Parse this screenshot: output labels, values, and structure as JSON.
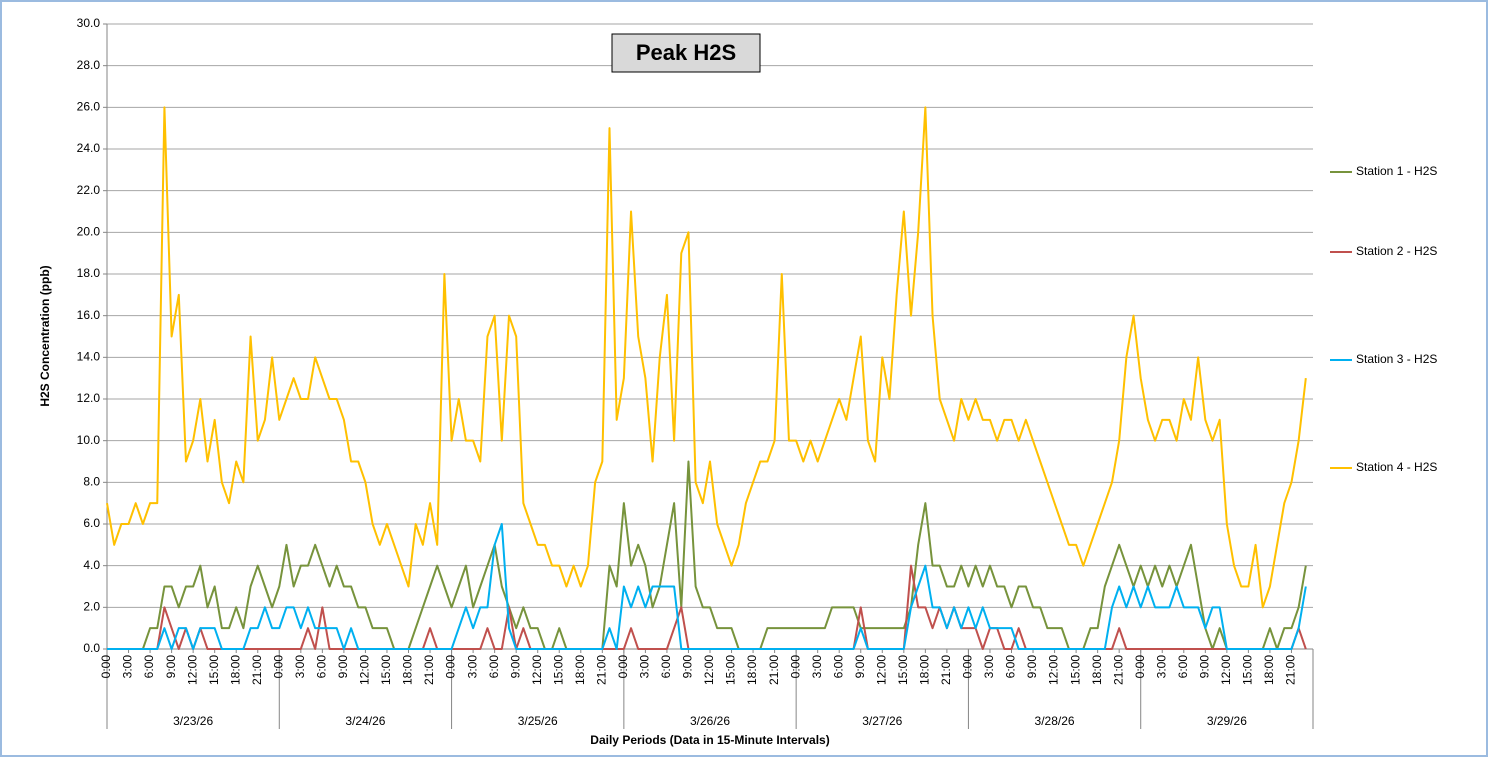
{
  "chart_data": {
    "type": "line",
    "title": "Peak H2S",
    "x_label": "Daily Periods (Data in 15-Minute Intervals)",
    "y_label": "H2S Concentration (ppb)",
    "days": [
      "3/23/26",
      "3/24/26",
      "3/25/26",
      "3/26/26",
      "3/27/26",
      "3/28/26",
      "3/29/26"
    ],
    "categories": [
      "0:00",
      null,
      null,
      "3:00",
      null,
      null,
      "6:00",
      null,
      null,
      "9:00",
      null,
      null,
      "12:00",
      null,
      null,
      "15:00",
      null,
      null,
      "18:00",
      null,
      null,
      "21:00",
      null,
      null,
      "0:00",
      null,
      null,
      "3:00",
      null,
      null,
      "6:00",
      null,
      null,
      "9:00",
      null,
      null,
      "12:00",
      null,
      null,
      "15:00",
      null,
      null,
      "18:00",
      null,
      null,
      "21:00",
      null,
      null,
      "0:00",
      null,
      null,
      "3:00",
      null,
      null,
      "6:00",
      null,
      null,
      "9:00",
      null,
      null,
      "12:00",
      null,
      null,
      "15:00",
      null,
      null,
      "18:00",
      null,
      null,
      "21:00",
      null,
      null,
      "0:00",
      null,
      null,
      "3:00",
      null,
      null,
      "6:00",
      null,
      null,
      "9:00",
      null,
      null,
      "12:00",
      null,
      null,
      "15:00",
      null,
      null,
      "18:00",
      null,
      null,
      "21:00",
      null,
      null,
      "0:00",
      null,
      null,
      "3:00",
      null,
      null,
      "6:00",
      null,
      null,
      "9:00",
      null,
      null,
      "12:00",
      null,
      null,
      "15:00",
      null,
      null,
      "18:00",
      null,
      null,
      "21:00",
      null,
      null,
      "0:00",
      null,
      null,
      "3:00",
      null,
      null,
      "6:00",
      null,
      null,
      "9:00",
      null,
      null,
      "12:00",
      null,
      null,
      "15:00",
      null,
      null,
      "18:00",
      null,
      null,
      "21:00",
      null,
      null,
      "0:00",
      null,
      null,
      "3:00",
      null,
      null,
      "6:00",
      null,
      null,
      "9:00",
      null,
      null,
      "12:00",
      null,
      null,
      "15:00",
      null,
      null,
      "18:00",
      null,
      null,
      "21:00",
      null,
      null
    ],
    "series": [
      {
        "name": "Station 1 - H2S",
        "color": "#77933c",
        "values": [
          0,
          0,
          0,
          0,
          0,
          0,
          1,
          1,
          3,
          3,
          2,
          3,
          3,
          4,
          2,
          3,
          1,
          1,
          2,
          1,
          3,
          4,
          3,
          2,
          3,
          5,
          3,
          4,
          4,
          5,
          4,
          3,
          4,
          3,
          3,
          2,
          2,
          1,
          1,
          1,
          0,
          0,
          0,
          1,
          2,
          3,
          4,
          3,
          2,
          3,
          4,
          2,
          3,
          4,
          5,
          3,
          2,
          1,
          2,
          1,
          1,
          0,
          0,
          1,
          0,
          0,
          0,
          0,
          0,
          0,
          4,
          3,
          7,
          4,
          5,
          4,
          2,
          3,
          5,
          7,
          2,
          9,
          3,
          2,
          2,
          1,
          1,
          1,
          0,
          0,
          0,
          0,
          1,
          1,
          1,
          1,
          1,
          1,
          1,
          1,
          1,
          2,
          2,
          2,
          2,
          1,
          1,
          1,
          1,
          1,
          1,
          1,
          2,
          5,
          7,
          4,
          4,
          3,
          3,
          4,
          3,
          4,
          3,
          4,
          3,
          3,
          2,
          3,
          3,
          2,
          2,
          1,
          1,
          1,
          0,
          0,
          0,
          1,
          1,
          3,
          4,
          5,
          4,
          3,
          4,
          3,
          4,
          3,
          4,
          3,
          4,
          5,
          3,
          1,
          0,
          1,
          0,
          0,
          0,
          0,
          0,
          0,
          1,
          0,
          1,
          1,
          2,
          4
        ]
      },
      {
        "name": "Station 2 - H2S",
        "color": "#c0504d",
        "values": [
          0,
          0,
          0,
          0,
          0,
          0,
          0,
          0,
          2,
          1,
          0,
          1,
          0,
          1,
          0,
          0,
          0,
          0,
          0,
          0,
          0,
          0,
          0,
          0,
          0,
          0,
          0,
          0,
          1,
          0,
          2,
          0,
          0,
          0,
          0,
          0,
          0,
          0,
          0,
          0,
          0,
          0,
          0,
          0,
          0,
          1,
          0,
          0,
          0,
          0,
          0,
          0,
          0,
          1,
          0,
          0,
          2,
          0,
          1,
          0,
          0,
          0,
          0,
          0,
          0,
          0,
          0,
          0,
          0,
          0,
          0,
          0,
          0,
          1,
          0,
          0,
          0,
          0,
          0,
          1,
          2,
          0,
          0,
          0,
          0,
          0,
          0,
          0,
          0,
          0,
          0,
          0,
          0,
          0,
          0,
          0,
          0,
          0,
          0,
          0,
          0,
          0,
          0,
          0,
          0,
          2,
          0,
          0,
          0,
          0,
          0,
          0,
          4,
          2,
          2,
          1,
          2,
          1,
          2,
          1,
          1,
          1,
          0,
          1,
          1,
          0,
          0,
          1,
          0,
          0,
          0,
          0,
          0,
          0,
          0,
          0,
          0,
          0,
          0,
          0,
          0,
          1,
          0,
          0,
          0,
          0,
          0,
          0,
          0,
          0,
          0,
          0,
          0,
          0,
          0,
          0,
          0,
          0,
          0,
          0,
          0,
          0,
          0,
          0,
          0,
          0,
          1,
          0
        ]
      },
      {
        "name": "Station 3 - H2S",
        "color": "#00b0f0",
        "values": [
          0,
          0,
          0,
          0,
          0,
          0,
          0,
          0,
          1,
          0,
          1,
          1,
          0,
          1,
          1,
          1,
          0,
          0,
          0,
          0,
          1,
          1,
          2,
          1,
          1,
          2,
          2,
          1,
          2,
          1,
          1,
          1,
          1,
          0,
          1,
          0,
          0,
          0,
          0,
          0,
          0,
          0,
          0,
          0,
          0,
          0,
          0,
          0,
          0,
          1,
          2,
          1,
          2,
          2,
          5,
          6,
          1,
          0,
          0,
          0,
          0,
          0,
          0,
          0,
          0,
          0,
          0,
          0,
          0,
          0,
          1,
          0,
          3,
          2,
          3,
          2,
          3,
          3,
          3,
          3,
          0,
          0,
          0,
          0,
          0,
          0,
          0,
          0,
          0,
          0,
          0,
          0,
          0,
          0,
          0,
          0,
          0,
          0,
          0,
          0,
          0,
          0,
          0,
          0,
          0,
          1,
          0,
          0,
          0,
          0,
          0,
          0,
          2,
          3,
          4,
          2,
          2,
          1,
          2,
          1,
          2,
          1,
          2,
          1,
          1,
          1,
          1,
          0,
          0,
          0,
          0,
          0,
          0,
          0,
          0,
          0,
          0,
          0,
          0,
          0,
          2,
          3,
          2,
          3,
          2,
          3,
          2,
          2,
          2,
          3,
          2,
          2,
          2,
          1,
          2,
          2,
          0,
          0,
          0,
          0,
          0,
          0,
          0,
          0,
          0,
          0,
          1,
          3
        ]
      },
      {
        "name": "Station 4 - H2S",
        "color": "#ffc000",
        "values": [
          7,
          5,
          6,
          6,
          7,
          6,
          7,
          7,
          26,
          15,
          17,
          9,
          10,
          12,
          9,
          11,
          8,
          7,
          9,
          8,
          15,
          10,
          11,
          14,
          11,
          12,
          13,
          12,
          12,
          14,
          13,
          12,
          12,
          11,
          9,
          9,
          8,
          6,
          5,
          6,
          5,
          4,
          3,
          6,
          5,
          7,
          5,
          18,
          10,
          12,
          10,
          10,
          9,
          15,
          16,
          10,
          16,
          15,
          7,
          6,
          5,
          5,
          4,
          4,
          3,
          4,
          3,
          4,
          8,
          9,
          25,
          11,
          13,
          21,
          15,
          13,
          9,
          14,
          17,
          10,
          19,
          20,
          8,
          7,
          9,
          6,
          5,
          4,
          5,
          7,
          8,
          9,
          9,
          10,
          18,
          10,
          10,
          9,
          10,
          9,
          10,
          11,
          12,
          11,
          13,
          15,
          10,
          9,
          14,
          12,
          17,
          21,
          16,
          20,
          26,
          16,
          12,
          11,
          10,
          12,
          11,
          12,
          11,
          11,
          10,
          11,
          11,
          10,
          11,
          10,
          9,
          8,
          7,
          6,
          5,
          5,
          4,
          5,
          6,
          7,
          8,
          10,
          14,
          16,
          13,
          11,
          10,
          11,
          11,
          10,
          12,
          11,
          14,
          11,
          10,
          11,
          6,
          4,
          3,
          3,
          5,
          2,
          3,
          5,
          7,
          8,
          10,
          13
        ]
      }
    ],
    "ylim": [
      0,
      30
    ],
    "yticks": [
      {
        "value": 0,
        "label": "0.0"
      },
      {
        "value": 2,
        "label": "2.0"
      },
      {
        "value": 4,
        "label": "4.0"
      },
      {
        "value": 6,
        "label": "6.0"
      },
      {
        "value": 8,
        "label": "8.0"
      },
      {
        "value": 10,
        "label": "10.0"
      },
      {
        "value": 12,
        "label": "12.0"
      },
      {
        "value": 14,
        "label": "14.0"
      },
      {
        "value": 16,
        "label": "16.0"
      },
      {
        "value": 18,
        "label": "18.0"
      },
      {
        "value": 20,
        "label": "20.0"
      },
      {
        "value": 22,
        "label": "22.0"
      },
      {
        "value": 24,
        "label": "24.0"
      },
      {
        "value": 26,
        "label": "26.0"
      },
      {
        "value": 28,
        "label": "28.0"
      },
      {
        "value": 30,
        "label": "30.0"
      }
    ],
    "grid": true,
    "legend": "right"
  }
}
